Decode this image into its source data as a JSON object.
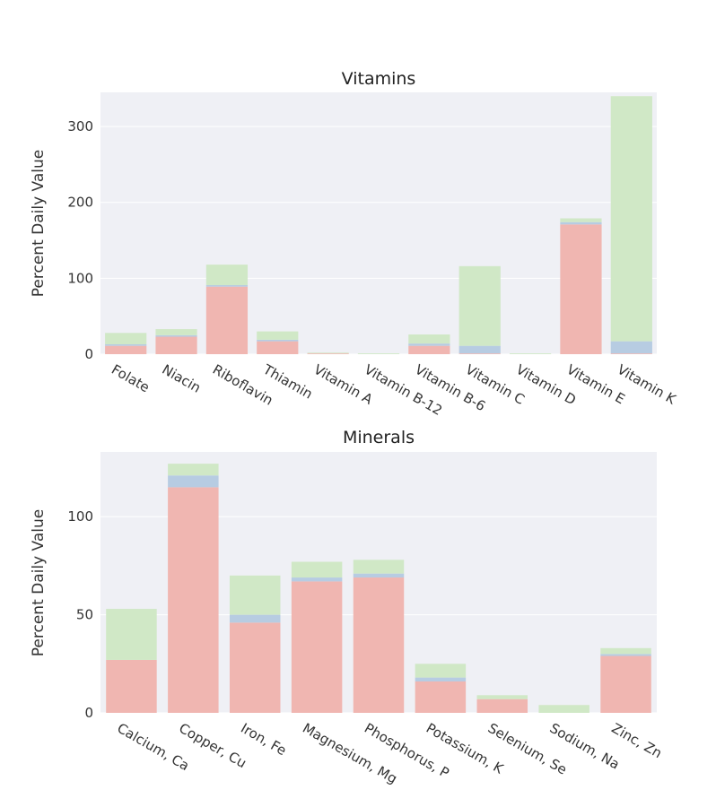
{
  "colors": {
    "series_a": "#f0b6b1",
    "series_b": "#b7cce2",
    "series_c": "#d0e8c6"
  },
  "chart_data": [
    {
      "type": "bar",
      "stacked": true,
      "title": "Vitamins",
      "ylabel": "Percent Daily Value",
      "ylim": [
        0,
        345
      ],
      "yticks": [
        0,
        100,
        200,
        300
      ],
      "grid": true,
      "categories": [
        "Folate",
        "Niacin",
        "Riboflavin",
        "Thiamin",
        "Vitamin A",
        "Vitamin B-12",
        "Vitamin B-6",
        "Vitamin C",
        "Vitamin D",
        "Vitamin E",
        "Vitamin K"
      ],
      "series": [
        {
          "values": [
            11,
            23,
            89,
            17,
            1,
            0,
            11,
            1,
            0,
            171,
            1
          ]
        },
        {
          "values": [
            2,
            2,
            2,
            2,
            0,
            0,
            3,
            10,
            0,
            3,
            16
          ]
        },
        {
          "values": [
            15,
            8,
            27,
            11,
            1,
            1,
            12,
            105,
            1,
            5,
            323
          ]
        }
      ]
    },
    {
      "type": "bar",
      "stacked": true,
      "title": "Minerals",
      "ylabel": "Percent Daily Value",
      "ylim": [
        0,
        133
      ],
      "yticks": [
        0,
        50,
        100
      ],
      "grid": true,
      "categories": [
        "Calcium, Ca",
        "Copper, Cu",
        "Iron, Fe",
        "Magnesium, Mg",
        "Phosphorus, P",
        "Potassium, K",
        "Selenium, Se",
        "Sodium, Na",
        "Zinc, Zn"
      ],
      "series": [
        {
          "values": [
            27,
            115,
            46,
            67,
            69,
            16,
            7,
            0,
            29
          ]
        },
        {
          "values": [
            0,
            6,
            4,
            2,
            2,
            2,
            0,
            0,
            1
          ]
        },
        {
          "values": [
            26,
            6,
            20,
            8,
            7,
            7,
            2,
            4,
            3
          ]
        }
      ]
    }
  ]
}
